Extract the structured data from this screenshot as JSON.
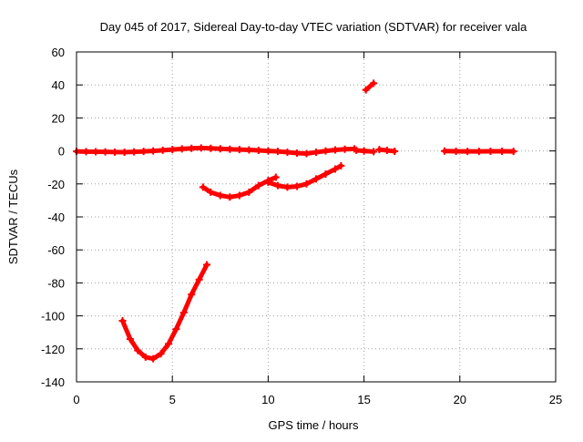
{
  "chart_data": {
    "type": "scatter",
    "title": "Day 045 of 2017, Sidereal Day-to-day VTEC variation (SDTVAR) for receiver vala",
    "xlabel": "GPS time / hours",
    "ylabel": "SDTVAR / TECUs",
    "xlim": [
      0,
      25
    ],
    "ylim": [
      -140,
      60
    ],
    "xticks": [
      0,
      5,
      10,
      15,
      20,
      25
    ],
    "yticks": [
      -140,
      -120,
      -100,
      -80,
      -60,
      -40,
      -20,
      0,
      20,
      40,
      60
    ],
    "grid": true,
    "color": "#ff0000",
    "series": [
      {
        "name": "near-zero-a",
        "x": [
          0.0,
          0.5,
          1.0,
          1.5,
          2.0,
          2.5,
          3.0,
          3.5,
          4.0,
          4.5,
          5.0,
          5.5,
          6.0,
          6.5,
          7.0,
          7.5,
          8.0,
          8.5,
          9.0,
          9.5,
          10.0,
          10.5,
          11.0,
          11.5,
          12.0,
          12.5,
          13.0,
          13.5,
          14.0,
          14.5
        ],
        "y": [
          -0.3,
          -0.4,
          -0.5,
          -0.6,
          -0.7,
          -0.8,
          -0.6,
          -0.3,
          0.0,
          0.4,
          0.8,
          1.2,
          1.6,
          1.8,
          1.6,
          1.3,
          1.0,
          0.8,
          0.6,
          0.3,
          0.0,
          -0.3,
          -0.8,
          -1.3,
          -1.6,
          -0.8,
          0.0,
          0.6,
          1.0,
          1.2
        ]
      },
      {
        "name": "near-zero-b",
        "x": [
          14.6,
          15.0,
          15.5
        ],
        "y": [
          0.4,
          0.0,
          -0.4
        ]
      },
      {
        "name": "near-zero-c",
        "x": [
          15.8,
          16.2,
          16.6
        ],
        "y": [
          0.8,
          0.3,
          -0.2
        ]
      },
      {
        "name": "near-zero-d",
        "x": [
          19.2,
          19.8,
          20.4,
          21.0,
          21.6,
          22.2,
          22.8
        ],
        "y": [
          -0.1,
          -0.2,
          -0.3,
          -0.3,
          -0.2,
          -0.2,
          -0.3
        ]
      },
      {
        "name": "spike",
        "x": [
          15.1,
          15.5
        ],
        "y": [
          37,
          41
        ]
      },
      {
        "name": "deep-dip",
        "x": [
          2.4,
          2.8,
          3.2,
          3.6,
          4.0,
          4.4,
          4.8,
          5.2,
          5.6,
          6.0,
          6.4,
          6.8
        ],
        "y": [
          -103,
          -114,
          -121,
          -125,
          -126,
          -123,
          -117,
          -108,
          -98,
          -87,
          -78,
          -69
        ]
      },
      {
        "name": "shallow-dip-a",
        "x": [
          6.6,
          7.0,
          7.5,
          8.0,
          8.5,
          9.0,
          9.5,
          10.0,
          10.4
        ],
        "y": [
          -22,
          -25,
          -27,
          -28,
          -27,
          -25,
          -21,
          -18,
          -16
        ]
      },
      {
        "name": "shallow-dip-b",
        "x": [
          10.0,
          10.5,
          11.0,
          11.5,
          12.0,
          12.5,
          13.0,
          13.5,
          13.8
        ],
        "y": [
          -19,
          -21,
          -22,
          -21.5,
          -20,
          -17,
          -14,
          -11,
          -9
        ]
      }
    ]
  }
}
